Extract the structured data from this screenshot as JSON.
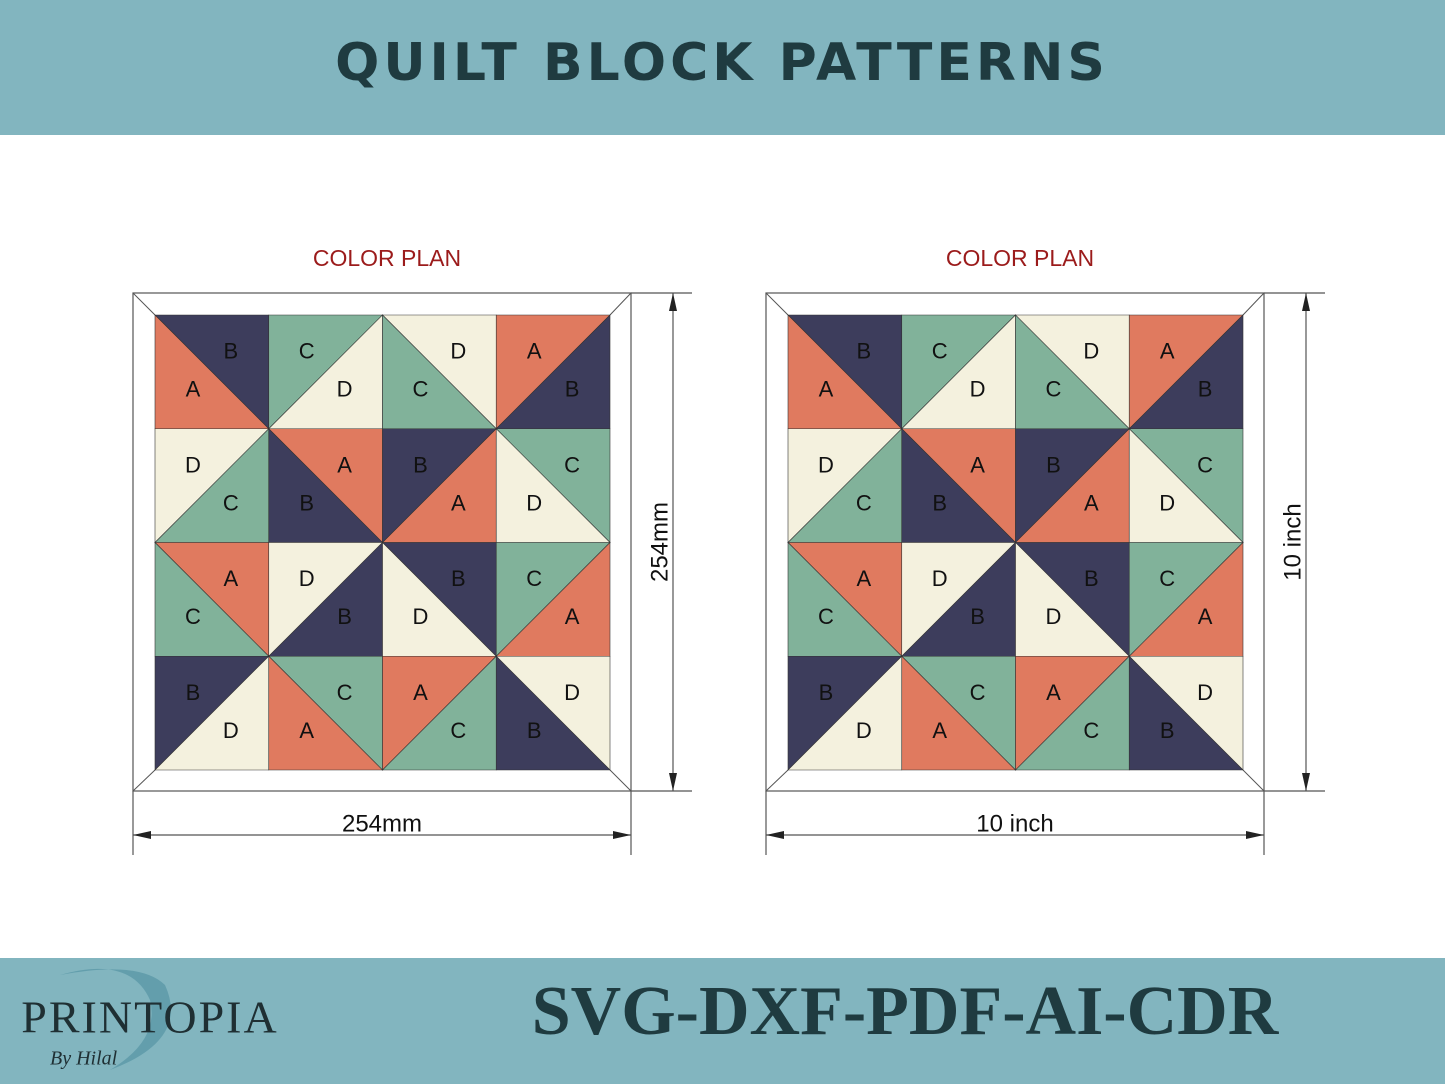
{
  "header": {
    "title": "QUILT BLOCK PATTERNS"
  },
  "fabric_colors": {
    "A": "#e07a5f",
    "B": "#3d3d5c",
    "C": "#81b29a",
    "D": "#f4f1de"
  },
  "blocks": [
    {
      "label": "COLOR PLAN",
      "width_label": "254mm",
      "height_label": "254mm",
      "cells": [
        {
          "split": "down",
          "upper": "B",
          "lower": "A"
        },
        {
          "split": "up",
          "upper": "C",
          "lower": "D"
        },
        {
          "split": "down",
          "upper": "D",
          "lower": "C"
        },
        {
          "split": "up",
          "upper": "A",
          "lower": "B"
        },
        {
          "split": "up",
          "upper": "D",
          "lower": "C"
        },
        {
          "split": "down",
          "upper": "A",
          "lower": "B"
        },
        {
          "split": "up",
          "upper": "B",
          "lower": "A"
        },
        {
          "split": "down",
          "upper": "C",
          "lower": "D"
        },
        {
          "split": "down",
          "upper": "A",
          "lower": "C"
        },
        {
          "split": "up",
          "upper": "D",
          "lower": "B"
        },
        {
          "split": "down",
          "upper": "B",
          "lower": "D"
        },
        {
          "split": "up",
          "upper": "C",
          "lower": "A"
        },
        {
          "split": "up",
          "upper": "B",
          "lower": "D"
        },
        {
          "split": "down",
          "upper": "C",
          "lower": "A"
        },
        {
          "split": "up",
          "upper": "A",
          "lower": "C"
        },
        {
          "split": "down",
          "upper": "D",
          "lower": "B"
        }
      ]
    },
    {
      "label": "COLOR PLAN",
      "width_label": "10 inch",
      "height_label": "10 inch",
      "cells": [
        {
          "split": "down",
          "upper": "B",
          "lower": "A"
        },
        {
          "split": "up",
          "upper": "C",
          "lower": "D"
        },
        {
          "split": "down",
          "upper": "D",
          "lower": "C"
        },
        {
          "split": "up",
          "upper": "A",
          "lower": "B"
        },
        {
          "split": "up",
          "upper": "D",
          "lower": "C"
        },
        {
          "split": "down",
          "upper": "A",
          "lower": "B"
        },
        {
          "split": "up",
          "upper": "B",
          "lower": "A"
        },
        {
          "split": "down",
          "upper": "C",
          "lower": "D"
        },
        {
          "split": "down",
          "upper": "A",
          "lower": "C"
        },
        {
          "split": "up",
          "upper": "D",
          "lower": "B"
        },
        {
          "split": "down",
          "upper": "B",
          "lower": "D"
        },
        {
          "split": "up",
          "upper": "C",
          "lower": "A"
        },
        {
          "split": "up",
          "upper": "B",
          "lower": "D"
        },
        {
          "split": "down",
          "upper": "C",
          "lower": "A"
        },
        {
          "split": "up",
          "upper": "A",
          "lower": "C"
        },
        {
          "split": "down",
          "upper": "D",
          "lower": "B"
        }
      ]
    }
  ],
  "footer": {
    "brand": "PRINTOPIA",
    "signature": "By Hilal",
    "formats": "SVG-DXF-PDF-AI-CDR"
  }
}
